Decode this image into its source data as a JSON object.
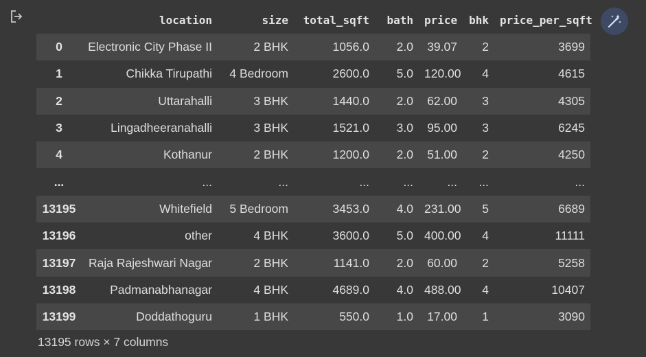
{
  "output_icon": "output-cell-icon",
  "magic_icon": "magic-wand-icon",
  "accent_color": "#3e4a63",
  "table": {
    "columns": [
      "location",
      "size",
      "total_sqft",
      "bath",
      "price",
      "bhk",
      "price_per_sqft"
    ],
    "rows": [
      {
        "index": "0",
        "location": "Electronic City Phase II",
        "size": "2 BHK",
        "total_sqft": "1056.0",
        "bath": "2.0",
        "price": "39.07",
        "bhk": "2",
        "price_per_sqft": "3699"
      },
      {
        "index": "1",
        "location": "Chikka Tirupathi",
        "size": "4 Bedroom",
        "total_sqft": "2600.0",
        "bath": "5.0",
        "price": "120.00",
        "bhk": "4",
        "price_per_sqft": "4615"
      },
      {
        "index": "2",
        "location": "Uttarahalli",
        "size": "3 BHK",
        "total_sqft": "1440.0",
        "bath": "2.0",
        "price": "62.00",
        "bhk": "3",
        "price_per_sqft": "4305"
      },
      {
        "index": "3",
        "location": "Lingadheeranahalli",
        "size": "3 BHK",
        "total_sqft": "1521.0",
        "bath": "3.0",
        "price": "95.00",
        "bhk": "3",
        "price_per_sqft": "6245"
      },
      {
        "index": "4",
        "location": "Kothanur",
        "size": "2 BHK",
        "total_sqft": "1200.0",
        "bath": "2.0",
        "price": "51.00",
        "bhk": "2",
        "price_per_sqft": "4250"
      },
      {
        "index": "...",
        "location": "...",
        "size": "...",
        "total_sqft": "...",
        "bath": "...",
        "price": "...",
        "bhk": "...",
        "price_per_sqft": "..."
      },
      {
        "index": "13195",
        "location": "Whitefield",
        "size": "5 Bedroom",
        "total_sqft": "3453.0",
        "bath": "4.0",
        "price": "231.00",
        "bhk": "5",
        "price_per_sqft": "6689"
      },
      {
        "index": "13196",
        "location": "other",
        "size": "4 BHK",
        "total_sqft": "3600.0",
        "bath": "5.0",
        "price": "400.00",
        "bhk": "4",
        "price_per_sqft": "11111"
      },
      {
        "index": "13197",
        "location": "Raja Rajeshwari Nagar",
        "size": "2 BHK",
        "total_sqft": "1141.0",
        "bath": "2.0",
        "price": "60.00",
        "bhk": "2",
        "price_per_sqft": "5258"
      },
      {
        "index": "13198",
        "location": "Padmanabhanagar",
        "size": "4 BHK",
        "total_sqft": "4689.0",
        "bath": "4.0",
        "price": "488.00",
        "bhk": "4",
        "price_per_sqft": "10407"
      },
      {
        "index": "13199",
        "location": "Doddathoguru",
        "size": "1 BHK",
        "total_sqft": "550.0",
        "bath": "1.0",
        "price": "17.00",
        "bhk": "1",
        "price_per_sqft": "3090"
      }
    ]
  },
  "shape_note": "13195 rows × 7 columns"
}
